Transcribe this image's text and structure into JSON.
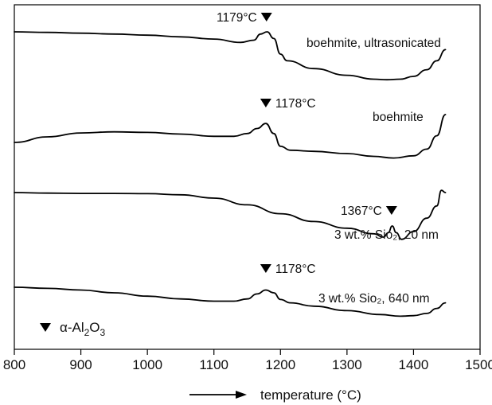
{
  "chart_data": {
    "type": "line",
    "title": "",
    "xlabel": "temperature (°C)",
    "ylabel": "",
    "xlim": [
      800,
      1500
    ],
    "x_ticks": [
      800,
      900,
      1000,
      1100,
      1200,
      1300,
      1400,
      1500
    ],
    "y_ticks_shown": false,
    "grid": false,
    "legend": {
      "symbol": "▼",
      "label": "α-Al",
      "label_sub": "2",
      "label_tail": "O",
      "label_sub2": "3",
      "placement": "bottom-left"
    },
    "series": [
      {
        "name": "boehmite, ultrasonicated",
        "peak": {
          "x": 1179,
          "label": "1179°C"
        },
        "x": [
          800,
          850,
          900,
          950,
          1000,
          1050,
          1100,
          1140,
          1160,
          1170,
          1180,
          1190,
          1200,
          1210,
          1250,
          1300,
          1340,
          1360,
          1380,
          1400,
          1420,
          1435,
          1448
        ],
        "y": [
          0.0,
          -0.05,
          -0.12,
          -0.2,
          -0.3,
          -0.45,
          -0.65,
          -0.95,
          -0.75,
          -0.2,
          0.0,
          -0.6,
          -2.0,
          -2.6,
          -3.3,
          -3.9,
          -4.25,
          -4.3,
          -4.25,
          -4.0,
          -3.4,
          -2.6,
          -1.6
        ]
      },
      {
        "name": "boehmite",
        "peak": {
          "x": 1178,
          "label": "1178°C"
        },
        "x": [
          800,
          850,
          900,
          950,
          1000,
          1050,
          1100,
          1130,
          1150,
          1165,
          1178,
          1190,
          1200,
          1215,
          1250,
          1300,
          1340,
          1370,
          1400,
          1420,
          1435,
          1448
        ],
        "y": [
          -2.0,
          -1.5,
          -1.15,
          -1.05,
          -1.1,
          -1.25,
          -1.45,
          -1.45,
          -1.2,
          -0.75,
          -0.3,
          -1.2,
          -2.35,
          -2.7,
          -2.8,
          -3.0,
          -3.25,
          -3.4,
          -3.2,
          -2.6,
          -1.4,
          0.5
        ]
      },
      {
        "name": "3 wt.% Sio₂, 20 nm",
        "peak": {
          "x": 1367,
          "label": "1367°C"
        },
        "x": [
          800,
          850,
          900,
          950,
          1000,
          1050,
          1100,
          1150,
          1200,
          1250,
          1300,
          1340,
          1355,
          1362,
          1368,
          1374,
          1382,
          1400,
          1420,
          1435,
          1442,
          1448
        ],
        "y": [
          0.0,
          -0.05,
          -0.08,
          -0.08,
          -0.1,
          -0.2,
          -0.5,
          -1.1,
          -1.9,
          -2.6,
          -3.2,
          -3.7,
          -4.0,
          -3.6,
          -3.0,
          -3.6,
          -4.2,
          -3.5,
          -2.3,
          -1.2,
          0.2,
          0.0
        ]
      },
      {
        "name": "3 wt.% Sio₂, 640 nm",
        "peak": {
          "x": 1178,
          "label": "1178°C"
        },
        "x": [
          800,
          850,
          900,
          950,
          1000,
          1050,
          1100,
          1130,
          1150,
          1165,
          1178,
          1190,
          1200,
          1215,
          1250,
          1300,
          1350,
          1380,
          1400,
          1420,
          1435,
          1448
        ],
        "y": [
          0.0,
          -0.1,
          -0.25,
          -0.5,
          -0.8,
          -1.05,
          -1.25,
          -1.25,
          -1.05,
          -0.6,
          -0.25,
          -0.5,
          -1.1,
          -1.4,
          -1.7,
          -2.1,
          -2.45,
          -2.6,
          -2.55,
          -2.35,
          -1.9,
          -1.4
        ]
      }
    ]
  }
}
